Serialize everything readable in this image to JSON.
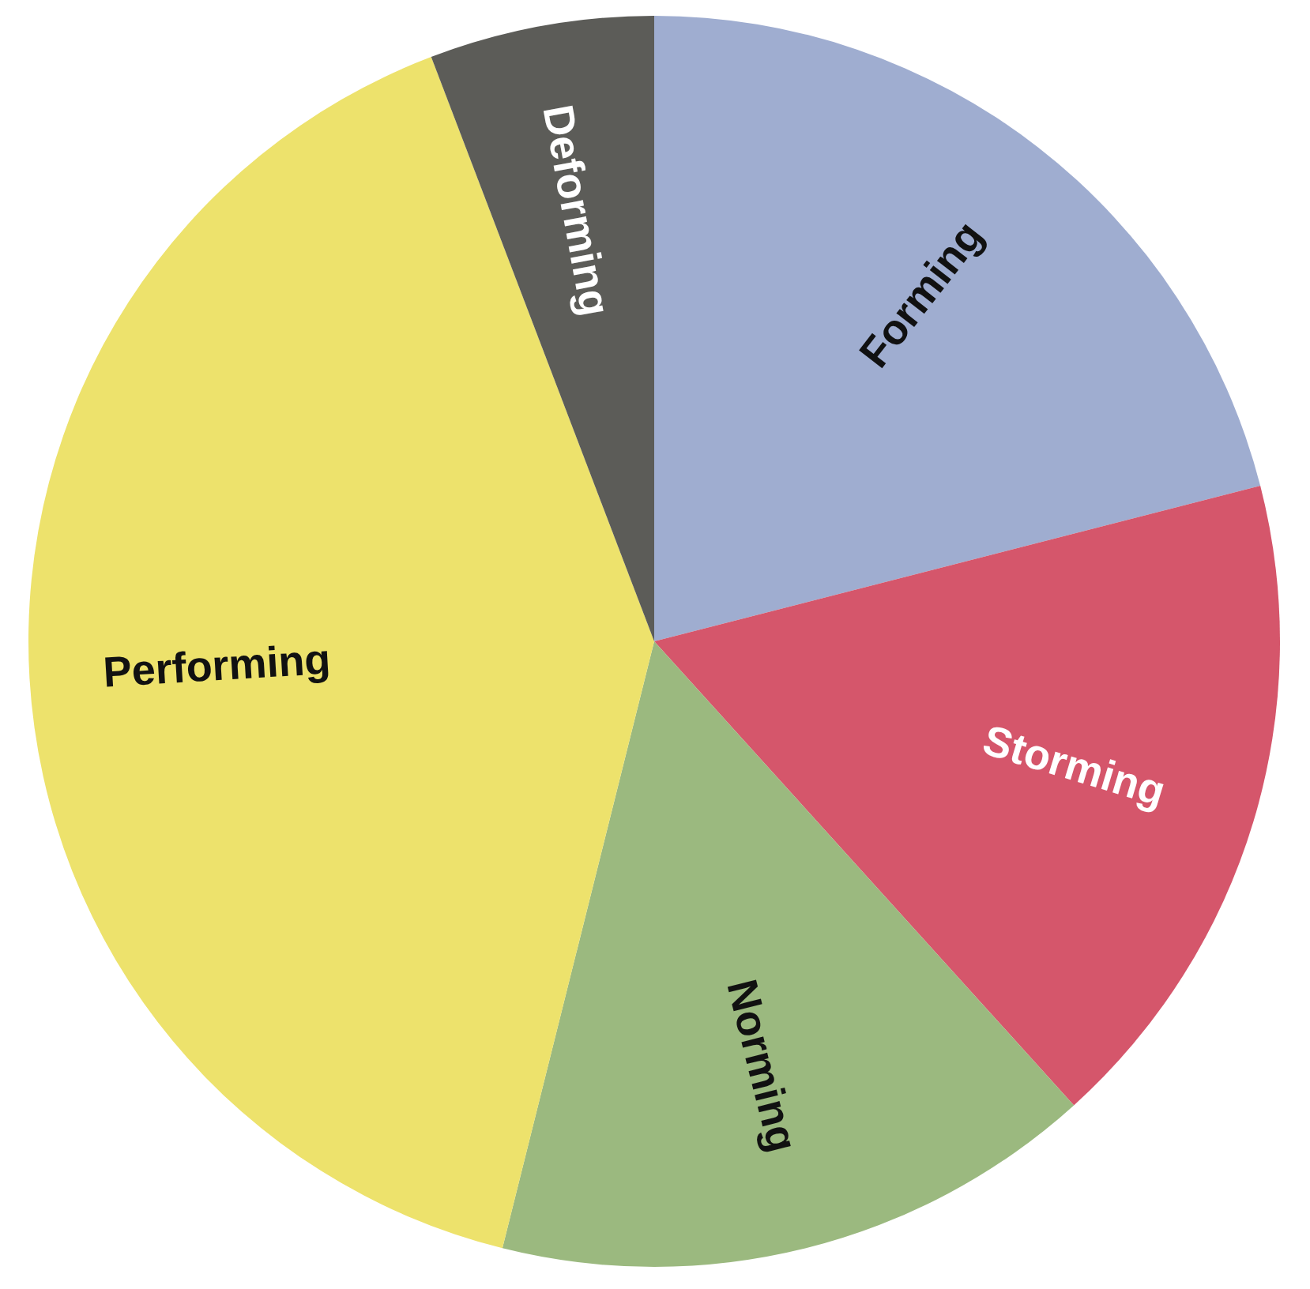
{
  "chart_data": {
    "type": "pie",
    "categories": [
      "Forming",
      "Storming",
      "Norming",
      "Performing",
      "Deforming"
    ],
    "values": [
      21,
      17.3,
      15.6,
      40.3,
      5.8
    ],
    "colors": [
      "#9fadd0",
      "#d5566b",
      "#9bb97f",
      "#ede26c",
      "#5c5c58"
    ],
    "legend": false
  }
}
